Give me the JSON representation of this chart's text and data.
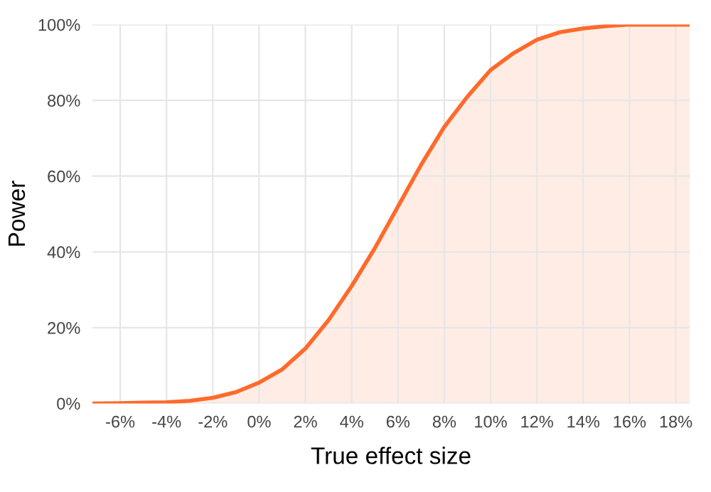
{
  "chart_data": {
    "type": "area",
    "xlabel": "True effect size",
    "ylabel": "Power",
    "series": [
      {
        "color": "#ff6a2b",
        "x": [
          -7.2,
          -6,
          -5,
          -4,
          -3,
          -2,
          -1,
          0,
          1,
          2,
          3,
          4,
          5,
          6,
          7,
          8,
          9,
          10,
          11,
          12,
          13,
          14,
          15,
          16,
          17,
          18.6
        ],
        "values": [
          0,
          0.1,
          0.2,
          0.3,
          0.7,
          1.5,
          3,
          5.5,
          9,
          14.5,
          22,
          31,
          41,
          52,
          63,
          73,
          81,
          88,
          92.5,
          96,
          98,
          99,
          99.6,
          100,
          100,
          100
        ]
      }
    ],
    "xlim": [
      -7.2,
      18.6
    ],
    "ylim": [
      0,
      100
    ],
    "xticks": [
      {
        "value": -6,
        "label": "-6%"
      },
      {
        "value": -4,
        "label": "-4%"
      },
      {
        "value": -2,
        "label": "-2%"
      },
      {
        "value": 0,
        "label": "0%"
      },
      {
        "value": 2,
        "label": "2%"
      },
      {
        "value": 4,
        "label": "4%"
      },
      {
        "value": 6,
        "label": "6%"
      },
      {
        "value": 8,
        "label": "8%"
      },
      {
        "value": 10,
        "label": "10%"
      },
      {
        "value": 12,
        "label": "12%"
      },
      {
        "value": 14,
        "label": "14%"
      },
      {
        "value": 16,
        "label": "16%"
      },
      {
        "value": 18,
        "label": "18%"
      }
    ],
    "yticks": [
      {
        "value": 0,
        "label": "0%"
      },
      {
        "value": 20,
        "label": "20%"
      },
      {
        "value": 40,
        "label": "40%"
      },
      {
        "value": 60,
        "label": "60%"
      },
      {
        "value": 80,
        "label": "80%"
      },
      {
        "value": 100,
        "label": "100%"
      }
    ],
    "grid": true,
    "legend": false,
    "marker": "none",
    "line_style": "solid"
  }
}
